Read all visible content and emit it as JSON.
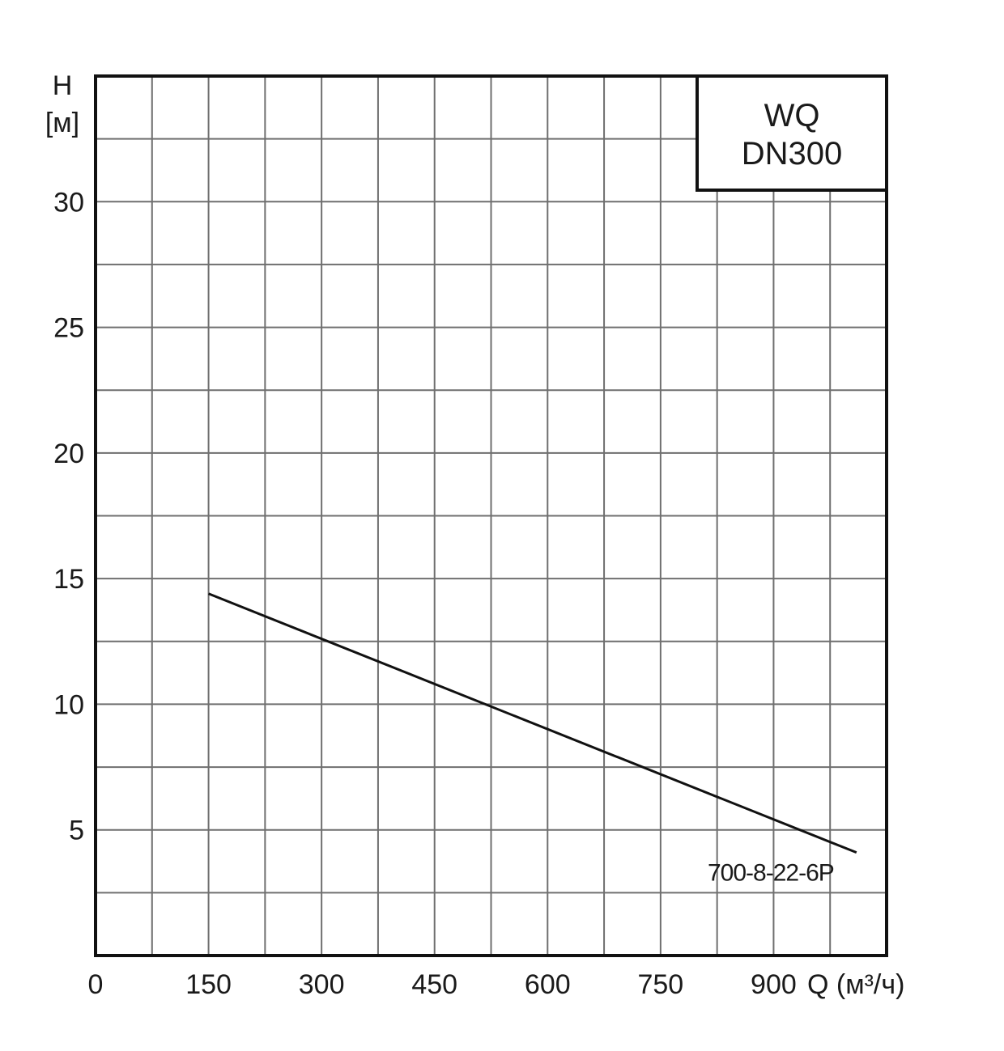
{
  "chart_data": {
    "type": "line",
    "title_box": [
      "WQ",
      "DN300"
    ],
    "y_axis_label": [
      "H",
      "[м]"
    ],
    "x_axis_label": "Q (м³/ч)",
    "xlim": [
      0,
      1050
    ],
    "ylim": [
      0,
      35
    ],
    "x_ticks": [
      0,
      150,
      300,
      450,
      600,
      750,
      900
    ],
    "y_ticks": [
      5,
      10,
      15,
      20,
      25,
      30
    ],
    "grid_x_step": 75,
    "grid_y_step": 2.5,
    "grid": true,
    "series": [
      {
        "name": "700-8-22-6P",
        "x": [
          150,
          1010
        ],
        "y": [
          14.4,
          4.1
        ]
      }
    ]
  }
}
